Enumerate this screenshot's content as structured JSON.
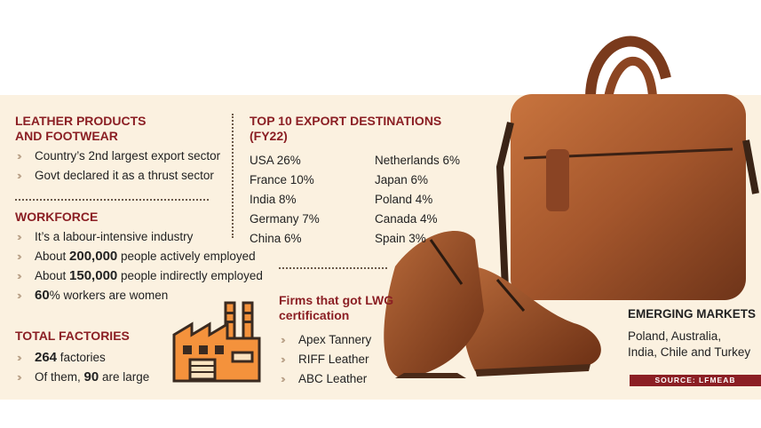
{
  "sections": {
    "leather": {
      "heading_line1": "LEATHER PRODUCTS",
      "heading_line2": "AND FOOTWEAR",
      "items": [
        "Country’s 2nd largest export sector",
        "Govt declared it as a thrust sector"
      ]
    },
    "workforce": {
      "heading": "WORKFORCE",
      "item1": "It’s a labour-intensive industry",
      "item2_pre": "About ",
      "item2_num": "200,000",
      "item2_post": " people actively employed",
      "item3_pre": "About ",
      "item3_num": "150,000",
      "item3_post": " people indirectly employed",
      "item4_num": "60",
      "item4_post": "% workers are women"
    },
    "factories": {
      "heading": "TOTAL FACTORIES",
      "item1_num": "264",
      "item1_post": " factories",
      "item2_pre": "Of them, ",
      "item2_num": "90",
      "item2_post": " are large"
    },
    "destinations": {
      "heading_line1": "TOP 10 EXPORT DESTINATIONS",
      "heading_line2": "(FY22)",
      "left": [
        "USA 26%",
        "France 10%",
        "India 8%",
        "Germany 7%",
        "China 6%"
      ],
      "right": [
        "Netherlands 6%",
        "Japan 6%",
        "Poland 4%",
        "Canada 4%",
        "Spain 3%"
      ]
    },
    "lwg": {
      "heading_line1": "Firms that got LWG",
      "heading_line2": "certification",
      "items": [
        "Apex Tannery",
        "RIFF Leather",
        "ABC Leather"
      ]
    },
    "emerging": {
      "heading": "EMERGING MARKETS",
      "line1": "Poland, Australia,",
      "line2": "India, Chile and Turkey"
    }
  },
  "source": "SOURCE: LFMEAB",
  "icons": [
    "factory-icon",
    "leather-bag-image",
    "brogue-shoes-image",
    "chevron-bullet-icon"
  ],
  "colors": {
    "panel": "#fbf1e0",
    "heading": "#8b1f24",
    "factory_orange": "#f4923c",
    "leather": "#a4562c"
  }
}
